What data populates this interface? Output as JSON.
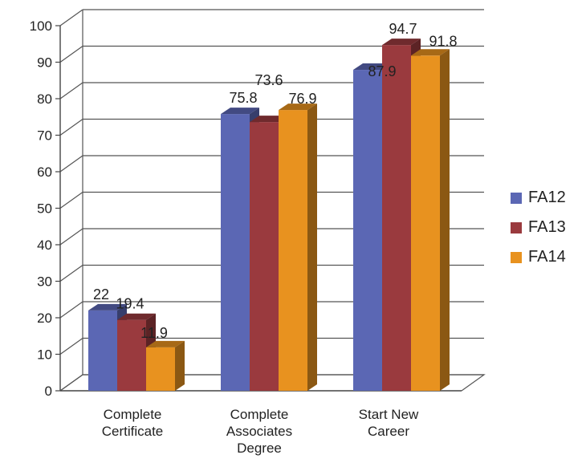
{
  "chart_data": {
    "type": "bar",
    "categories": [
      [
        "Complete",
        "Certificate"
      ],
      [
        "Complete",
        "Associates",
        "Degree"
      ],
      [
        "Start New",
        "Career"
      ]
    ],
    "series": [
      {
        "name": "FA12",
        "values": [
          22,
          75.8,
          87.9
        ],
        "labels": [
          "22",
          "75.8",
          "87.9"
        ],
        "color": "#5b67b4"
      },
      {
        "name": "FA13",
        "values": [
          19.4,
          73.6,
          94.7
        ],
        "labels": [
          "19.4",
          "73.6",
          "94.7"
        ],
        "color": "#9a3a3e"
      },
      {
        "name": "FA14",
        "values": [
          11.9,
          76.9,
          91.8
        ],
        "labels": [
          "11.9",
          "76.9",
          "91.8"
        ],
        "color": "#e8921f"
      }
    ],
    "ylim": [
      0,
      100
    ],
    "yticks": [
      "0",
      "10",
      "20",
      "30",
      "40",
      "50",
      "60",
      "70",
      "80",
      "90",
      "100"
    ],
    "grid": true,
    "legend": "right",
    "style": "3d-clustered-column"
  }
}
